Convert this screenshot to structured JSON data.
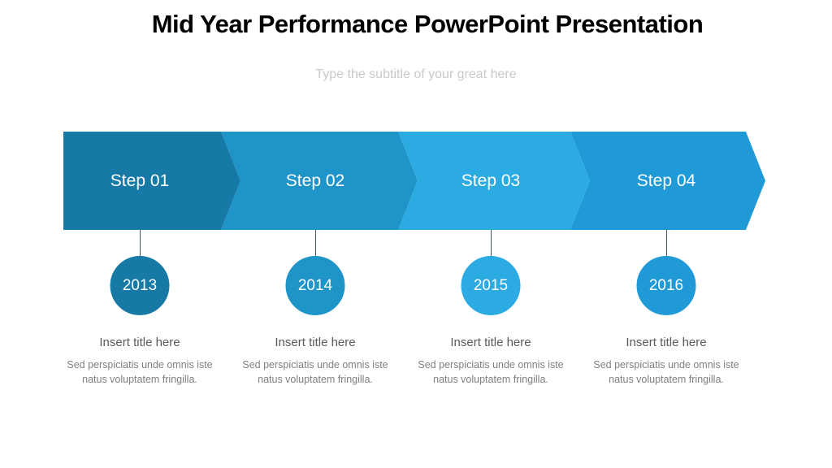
{
  "slide": {
    "title": "Mid Year Performance PowerPoint Presentation",
    "subtitle_placeholder": "Type the subtitle of your great here"
  },
  "timeline": {
    "steps": [
      {
        "label": "Step 01",
        "year": "2013",
        "color": "#1679A6",
        "title": "Insert title here",
        "description": "Sed perspiciatis unde omnis iste natus voluptatem fringilla."
      },
      {
        "label": "Step 02",
        "year": "2014",
        "color": "#1E94C8",
        "title": "Insert title here",
        "description": "Sed perspiciatis unde omnis iste natus voluptatem fringilla."
      },
      {
        "label": "Step 03",
        "year": "2015",
        "color": "#2BABE2",
        "title": "Insert title here",
        "description": "Sed perspiciatis unde omnis iste natus voluptatem fringilla."
      },
      {
        "label": "Step 04",
        "year": "2016",
        "color": "#1F9AD6",
        "title": "Insert title here",
        "description": "Sed perspiciatis unde omnis iste natus voluptatem fringilla."
      }
    ]
  },
  "colors": {
    "background": "#FFFFFF",
    "title_text": "#000000",
    "subtitle_text": "#C9C9C9",
    "step_label_text": "#FFFFFF",
    "year_text": "#FFFFFF",
    "item_title_text": "#595959",
    "item_description_text": "#7F7F7F",
    "connector_line": "#455A64"
  }
}
